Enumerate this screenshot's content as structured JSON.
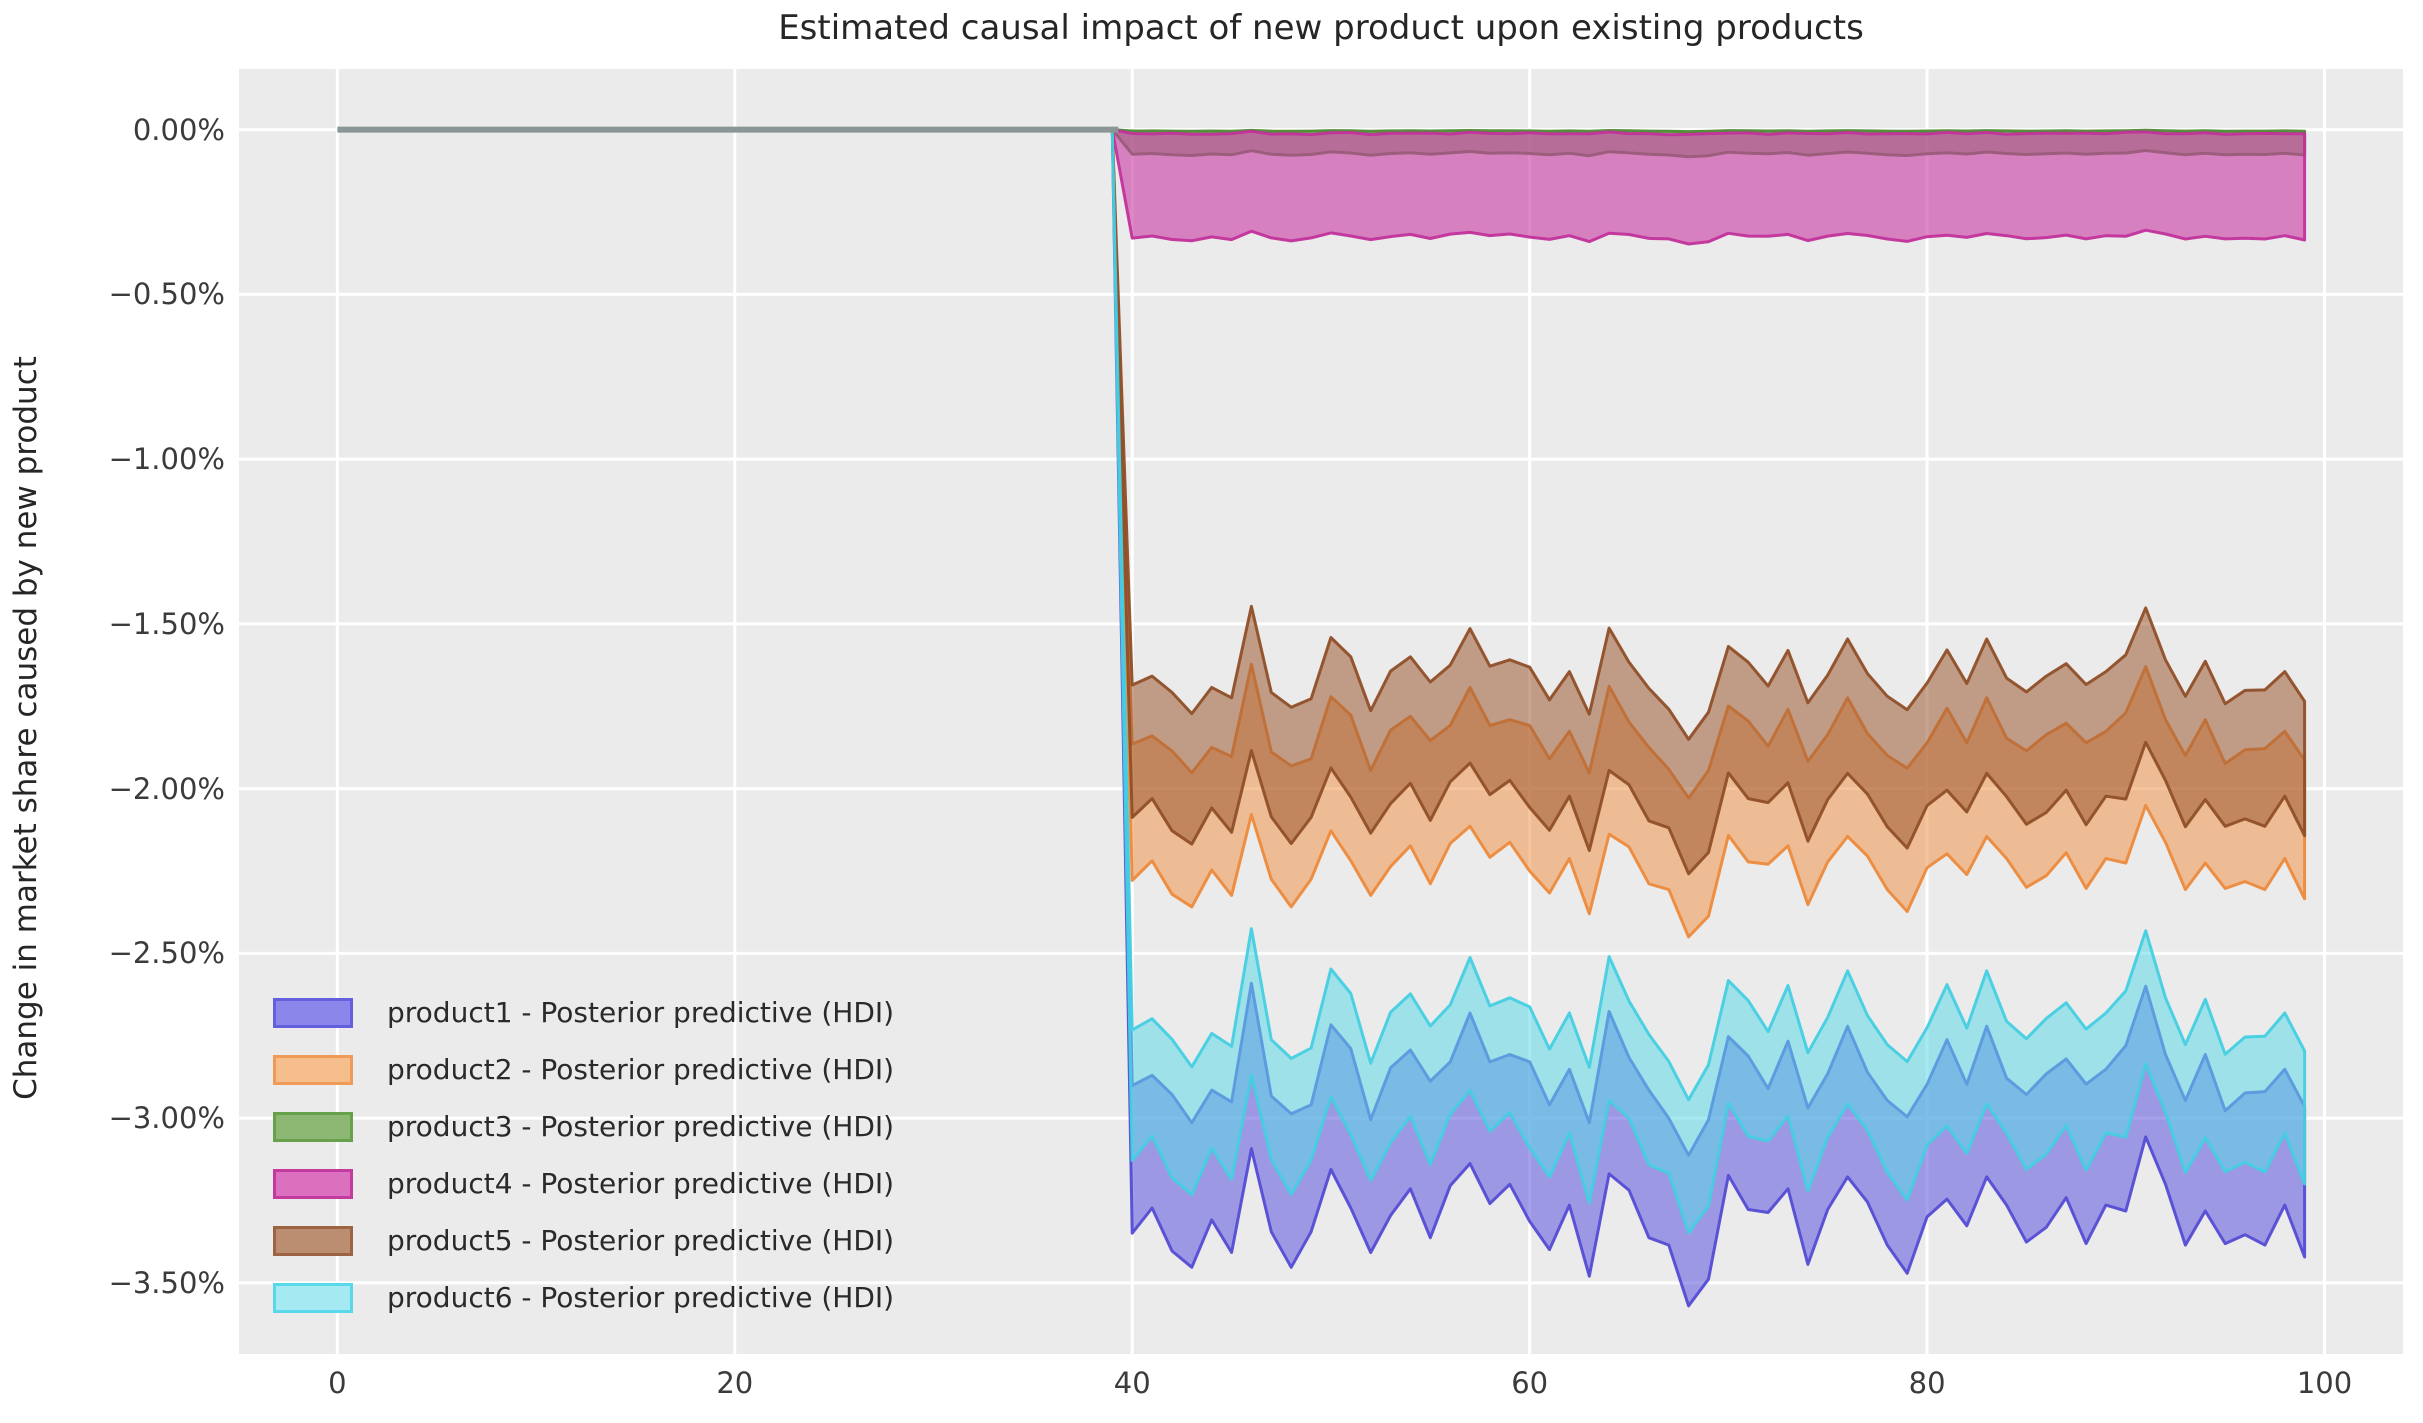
{
  "title": "Estimated causal impact of new product upon existing products",
  "ylabel": "Change in market share caused by new product",
  "colors": {
    "figure_bg": "#ffffff",
    "plot_bg": "#ebebeb",
    "grid": "#ffffff",
    "zero_line": "#8a9696",
    "title_text": "#262626",
    "tick_text": "#3b3b3b"
  },
  "legend": {
    "position": "lower left",
    "items": [
      {
        "label": "product1 - Posterior predictive (HDI)",
        "swatch_fill": "#8A86EA",
        "swatch_border": "#6360DE"
      },
      {
        "label": "product2 - Posterior predictive (HDI)",
        "swatch_fill": "#F6BD8D",
        "swatch_border": "#EF9B57"
      },
      {
        "label": "product3 - Posterior predictive (HDI)",
        "swatch_fill": "#8CB873",
        "swatch_border": "#68A14B"
      },
      {
        "label": "product4 - Posterior predictive (HDI)",
        "swatch_fill": "#DA70BE",
        "swatch_border": "#C43BA0"
      },
      {
        "label": "product5 - Posterior predictive (HDI)",
        "swatch_fill": "#BB8E72",
        "swatch_border": "#9C6442"
      },
      {
        "label": "product6 - Posterior predictive (HDI)",
        "swatch_fill": "#A5E9F3",
        "swatch_border": "#58D8E8"
      }
    ]
  },
  "axes": {
    "x_ticks": [
      {
        "value": 0,
        "label": "0"
      },
      {
        "value": 20,
        "label": "20"
      },
      {
        "value": 40,
        "label": "40"
      },
      {
        "value": 60,
        "label": "60"
      },
      {
        "value": 80,
        "label": "80"
      },
      {
        "value": 100,
        "label": "100"
      }
    ],
    "y_ticks": [
      {
        "value": 0.0,
        "label": "0.00%"
      },
      {
        "value": -0.5,
        "label": "−0.50%"
      },
      {
        "value": -1.0,
        "label": "−1.00%"
      },
      {
        "value": -1.5,
        "label": "−1.50%"
      },
      {
        "value": -2.0,
        "label": "−2.00%"
      },
      {
        "value": -2.5,
        "label": "−2.50%"
      },
      {
        "value": -3.0,
        "label": "−3.00%"
      },
      {
        "value": -3.5,
        "label": "−3.50%"
      }
    ]
  },
  "chart_data": {
    "type": "area",
    "title": "Estimated causal impact of new product upon existing products",
    "xlabel": "",
    "ylabel": "Change in market share caused by new product",
    "grid": true,
    "legend_position": "lower left",
    "xlim": [
      -4.95,
      103.95
    ],
    "ylim": [
      -3.716,
      0.184
    ],
    "units": "percent market share change",
    "pre_period_line": {
      "x0": 0,
      "x1": 39.3,
      "y": 0,
      "color": "#8a9696",
      "width": 6
    },
    "post_x_start": 40,
    "n_points": 100,
    "band_model": "HDI band edges at x=40+i: upper[i]=upper_base+amp_upper*P[i]+width_jitter*Q[i]; lower[i]=lower_base+amp_lower*P[i]-width_jitter*Q[i]; all values 0 for x<=39",
    "pattern_P": [
      -0.15,
      0.05,
      -0.3,
      -0.55,
      -0.1,
      -0.35,
      0.9,
      -0.2,
      -0.5,
      -0.25,
      0.55,
      0.2,
      -0.45,
      0.05,
      0.3,
      -0.15,
      0.25,
      0.65,
      0.15,
      0.3,
      0.05,
      -0.35,
      0.1,
      -0.6,
      0.6,
      0.25,
      -0.2,
      -0.4,
      -0.95,
      -0.6,
      0.45,
      0.15,
      -0.05,
      0.35,
      -0.45,
      0.05,
      0.5,
      0.1,
      -0.3,
      -0.55,
      -0.05,
      0.3,
      -0.1,
      0.5,
      0.05,
      -0.25,
      -0.05,
      0.2,
      -0.2,
      0.1,
      0.2,
      0.95,
      0.3,
      -0.3,
      0.15,
      -0.35,
      -0.2,
      -0.25,
      0.1,
      -0.4
    ],
    "pattern_Q": [
      0.2,
      -0.3,
      0.5,
      0.1,
      -0.4,
      0.3,
      0.8,
      -0.2,
      0.4,
      -0.5,
      0.1,
      0.6,
      -0.3,
      0.2,
      -0.1,
      0.5,
      -0.6,
      0.3,
      0.0,
      -0.4,
      0.6,
      0.1,
      -0.2,
      0.4,
      0.7,
      -0.3,
      0.2,
      -0.5,
      0.3,
      0.6,
      -0.1,
      0.4,
      -0.6,
      0.2,
      0.5,
      -0.2,
      0.3,
      -0.4,
      0.1,
      0.5,
      -0.3,
      0.6,
      0.0,
      0.3,
      -0.5,
      0.2,
      0.4,
      -0.1,
      0.6,
      -0.2,
      0.8,
      0.3,
      -0.4,
      0.1,
      0.5,
      -0.3,
      0.0,
      0.4,
      -0.2,
      0.3
    ],
    "series": [
      {
        "name": "product1",
        "label": "product1 - Posterior predictive (HDI)",
        "fill": "#5B54DC",
        "stroke": "#544CD4",
        "fill_opacity": 0.55,
        "upper_base": -2.87,
        "lower_base": -3.3,
        "amp_upper": 0.27,
        "amp_lower": 0.27,
        "width_jitter": 0.045
      },
      {
        "name": "product2",
        "label": "product2 - Posterior predictive (HDI)",
        "fill": "#F0964C",
        "stroke": "#EC8A3C",
        "fill_opacity": 0.55,
        "upper_base": -1.84,
        "lower_base": -2.24,
        "amp_upper": 0.21,
        "amp_lower": 0.21,
        "width_jitter": 0.035
      },
      {
        "name": "product3",
        "label": "product3 - Posterior predictive (HDI)",
        "fill": "#5F9B41",
        "stroke": "#4E8A33",
        "fill_opacity": 0.6,
        "upper_base": -0.004,
        "lower_base": -0.073,
        "amp_upper": 0.002,
        "amp_lower": 0.01,
        "width_jitter": 0.0
      },
      {
        "name": "product4",
        "label": "product4 - Posterior predictive (HDI)",
        "fill": "#C93FA6",
        "stroke": "#C2329B",
        "fill_opacity": 0.62,
        "upper_base": -0.012,
        "lower_base": -0.325,
        "amp_upper": 0.004,
        "amp_lower": 0.022,
        "width_jitter": 0.004
      },
      {
        "name": "product5",
        "label": "product5 - Posterior predictive (HDI)",
        "fill": "#9C5A32",
        "stroke": "#8F4F28",
        "fill_opacity": 0.55,
        "upper_base": -1.66,
        "lower_base": -2.05,
        "amp_upper": 0.21,
        "amp_lower": 0.21,
        "width_jitter": 0.03
      },
      {
        "name": "product6",
        "label": "product6 - Posterior predictive (HDI)",
        "fill": "#5FD8E8",
        "stroke": "#45CFE2",
        "fill_opacity": 0.55,
        "upper_base": -2.7,
        "lower_base": -3.08,
        "amp_upper": 0.27,
        "amp_lower": 0.27,
        "width_jitter": 0.04
      }
    ]
  }
}
